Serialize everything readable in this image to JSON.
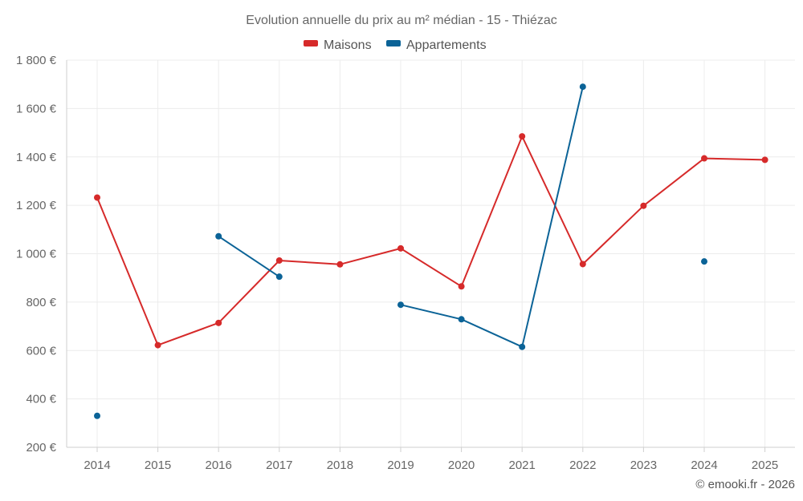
{
  "chart_data": {
    "type": "line",
    "title": "Evolution annuelle du prix au m² médian - 15 - Thiézac",
    "categories": [
      "2014",
      "2015",
      "2016",
      "2017",
      "2018",
      "2019",
      "2020",
      "2021",
      "2022",
      "2023",
      "2024",
      "2025"
    ],
    "ylim": [
      200,
      1800
    ],
    "yticks": [
      200,
      400,
      600,
      800,
      1000,
      1200,
      1400,
      1600,
      1800
    ],
    "ytick_labels": [
      "200 €",
      "400 €",
      "600 €",
      "800 €",
      "1 000 €",
      "1 200 €",
      "1 400 €",
      "1 600 €",
      "1 800 €"
    ],
    "grid": true,
    "legend_position": "top-center",
    "series": [
      {
        "name": "Maisons",
        "color": "#d62a2a",
        "values": [
          1232,
          622,
          714,
          972,
          956,
          1022,
          865,
          1485,
          957,
          1198,
          1394,
          1388
        ]
      },
      {
        "name": "Appartements",
        "color": "#0b6397",
        "values": [
          330,
          null,
          1072,
          905,
          null,
          789,
          729,
          615,
          1690,
          null,
          968,
          null
        ]
      }
    ],
    "credit": "© emooki.fr - 2026"
  }
}
